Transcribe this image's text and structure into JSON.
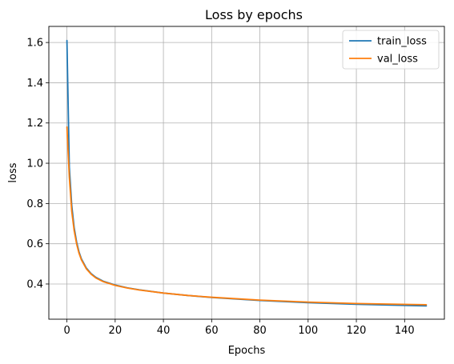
{
  "chart_data": {
    "type": "line",
    "title": "Loss by epochs",
    "xlabel": "Epochs",
    "ylabel": "loss",
    "xlim": [
      -7.5,
      156.5
    ],
    "ylim": [
      0.225,
      1.68
    ],
    "xticks": [
      0,
      20,
      40,
      60,
      80,
      100,
      120,
      140
    ],
    "yticks": [
      0.4,
      0.6,
      0.8,
      1.0,
      1.2,
      1.4,
      1.6
    ],
    "ytick_labels": [
      "0.4",
      "0.6",
      "0.8",
      "1.0",
      "1.2",
      "1.4",
      "1.6"
    ],
    "grid": true,
    "legend_position": "top-right",
    "series": [
      {
        "name": "train_loss",
        "color": "#1f77b4",
        "x": [
          0,
          1,
          2,
          3,
          4,
          5,
          6,
          8,
          10,
          12,
          15,
          20,
          25,
          30,
          40,
          50,
          60,
          80,
          100,
          120,
          149
        ],
        "values": [
          1.61,
          0.98,
          0.79,
          0.68,
          0.61,
          0.56,
          0.525,
          0.48,
          0.452,
          0.433,
          0.414,
          0.395,
          0.381,
          0.371,
          0.355,
          0.343,
          0.333,
          0.318,
          0.307,
          0.299,
          0.291
        ]
      },
      {
        "name": "val_loss",
        "color": "#ff7f0e",
        "x": [
          0,
          1,
          2,
          3,
          4,
          5,
          6,
          8,
          10,
          12,
          15,
          20,
          25,
          30,
          40,
          50,
          60,
          80,
          100,
          120,
          149
        ],
        "values": [
          1.18,
          0.93,
          0.76,
          0.665,
          0.6,
          0.553,
          0.52,
          0.476,
          0.449,
          0.43,
          0.412,
          0.393,
          0.38,
          0.37,
          0.355,
          0.343,
          0.334,
          0.32,
          0.31,
          0.303,
          0.297
        ]
      }
    ]
  }
}
